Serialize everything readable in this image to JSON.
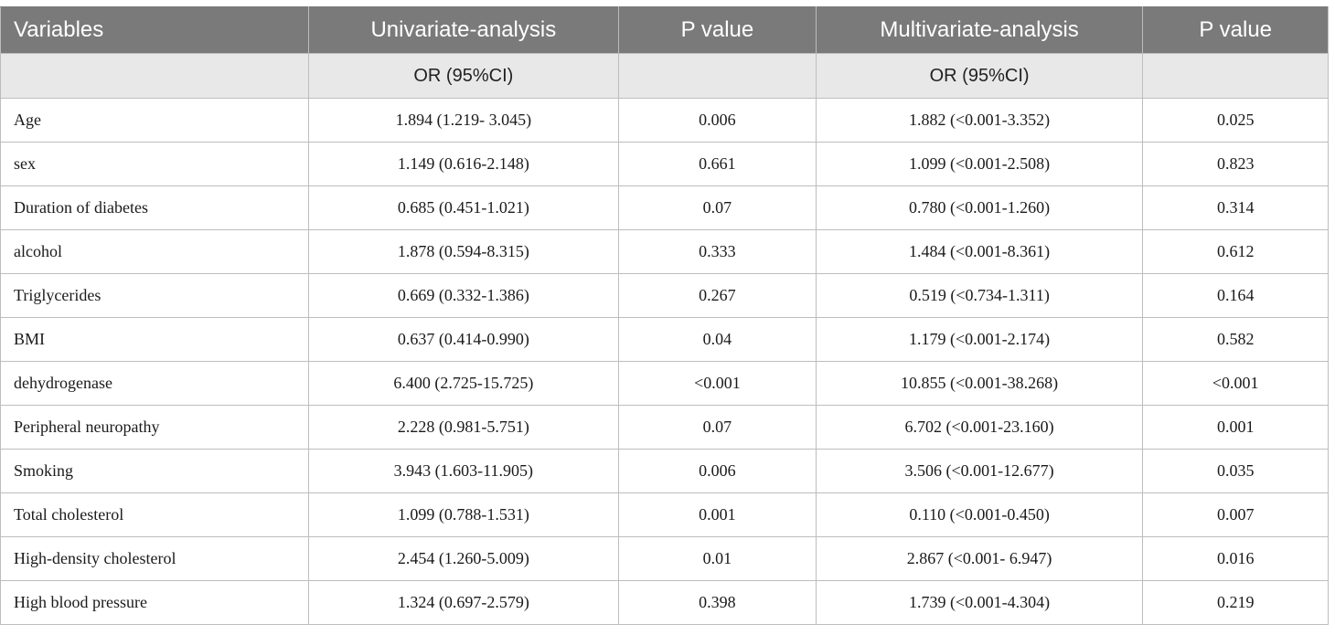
{
  "table": {
    "headers": [
      "Variables",
      "Univariate-analysis",
      "P value",
      "Multivariate-analysis",
      "P value"
    ],
    "subheaders": [
      "",
      "OR (95%CI)",
      "",
      "OR (95%CI)",
      ""
    ],
    "rows": [
      [
        "Age",
        "1.894 (1.219- 3.045)",
        "0.006",
        "1.882 (<0.001-3.352)",
        "0.025"
      ],
      [
        "sex",
        "1.149 (0.616-2.148)",
        "0.661",
        "1.099 (<0.001-2.508)",
        "0.823"
      ],
      [
        "Duration of diabetes",
        "0.685 (0.451-1.021)",
        "0.07",
        "0.780 (<0.001-1.260)",
        "0.314"
      ],
      [
        "alcohol",
        "1.878 (0.594-8.315)",
        "0.333",
        "1.484 (<0.001-8.361)",
        "0.612"
      ],
      [
        "Triglycerides",
        "0.669 (0.332-1.386)",
        "0.267",
        "0.519 (<0.734-1.311)",
        "0.164"
      ],
      [
        "BMI",
        "0.637 (0.414-0.990)",
        "0.04",
        "1.179 (<0.001-2.174)",
        "0.582"
      ],
      [
        "dehydrogenase",
        "6.400 (2.725-15.725)",
        "<0.001",
        "10.855 (<0.001-38.268)",
        "<0.001"
      ],
      [
        "Peripheral neuropathy",
        "2.228 (0.981-5.751)",
        "0.07",
        "6.702 (<0.001-23.160)",
        "0.001"
      ],
      [
        "Smoking",
        "3.943 (1.603-11.905)",
        "0.006",
        "3.506 (<0.001-12.677)",
        "0.035"
      ],
      [
        "Total cholesterol",
        "1.099 (0.788-1.531)",
        "0.001",
        "0.110 (<0.001-0.450)",
        "0.007"
      ],
      [
        "High-density cholesterol",
        "2.454 (1.260-5.009)",
        "0.01",
        "2.867 (<0.001- 6.947)",
        "0.016"
      ],
      [
        "High blood pressure",
        "1.324 (0.697-2.579)",
        "0.398",
        "1.739 (<0.001-4.304)",
        "0.219"
      ]
    ]
  }
}
